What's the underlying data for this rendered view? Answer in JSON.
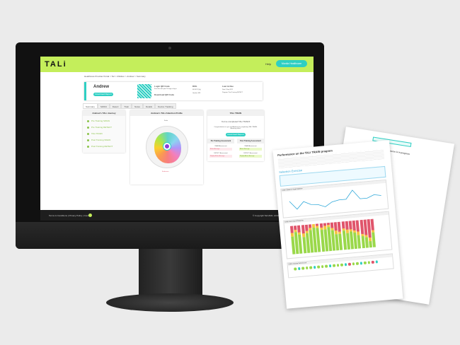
{
  "header": {
    "logo": "TALi",
    "help": "Help",
    "account": "Manila Healthcare"
  },
  "breadcrumb": "Healthcare Provider Portal  >  Tal  >  Children  >  Andrew  >  Summary",
  "profile": {
    "name": "Andrew",
    "download_report": "Download Report",
    "qr_title": "Login QR Code",
    "qr_desc": "Scan this with your Tali app to log in",
    "download_qr": "Download QR Code",
    "dob_label": "DOb",
    "dob": "04/10/17 (5y)",
    "gender": "Gender: M/F",
    "last_active_label": "Last Active",
    "last_active": "Date      3 Sep 2021",
    "program": "Program: Post Training DETECT"
  },
  "tabs": [
    "Summary",
    "SWAN",
    "Detect",
    "Train",
    "Notes",
    "Details",
    "Device Tracking"
  ],
  "journey": {
    "title": "Andrew's TALi Journey",
    "steps": [
      "Pre Training SWAN",
      "Pre Training DETECT",
      "TALi TRAIN",
      "Post Training SWAN",
      "Post Training DETECT"
    ]
  },
  "profile_chart": {
    "title": "Andrew's TALi Attention Profile",
    "top_label": "Scale",
    "bottom_label": "Endurance"
  },
  "train": {
    "title": "TALi TRAIN",
    "completed": "You've completed TALi TRAIN!",
    "congrats": "Congratulations to you and Andrew for completing TALi TRAIN. Amazing effort!",
    "download": "Download Report",
    "pre_title": "Pre Training Assessment",
    "post_title": "Post Training Assessment",
    "swan": "SWAN Assessment",
    "detect": "DETECT Assessment",
    "pre_swan": "Below Average",
    "pre_detect": "Slightly Below Average",
    "post_swan": "Above Average",
    "post_detect": "Slightly Above Average"
  },
  "footer": {
    "links": "Terms & Conditions | Privacy Policy | Contact",
    "copyright": "© Copyright Tali 2021. All Rights Reserved"
  },
  "report": {
    "title": "Performance on the TALi TRAIN program",
    "section": "Selection Exercise",
    "chart1": "Child's Speed of Target Selection",
    "chart2": "Child's Accuracy of Response",
    "chart3": "Child's Impulse Performance",
    "back_title": "Your TALi TRAIN course is in progress"
  },
  "colors": {
    "lime": "#c4ee5b",
    "teal": "#2fcfc3",
    "green": "#9ad84a",
    "yellow": "#f5c542",
    "red": "#e0556b"
  }
}
